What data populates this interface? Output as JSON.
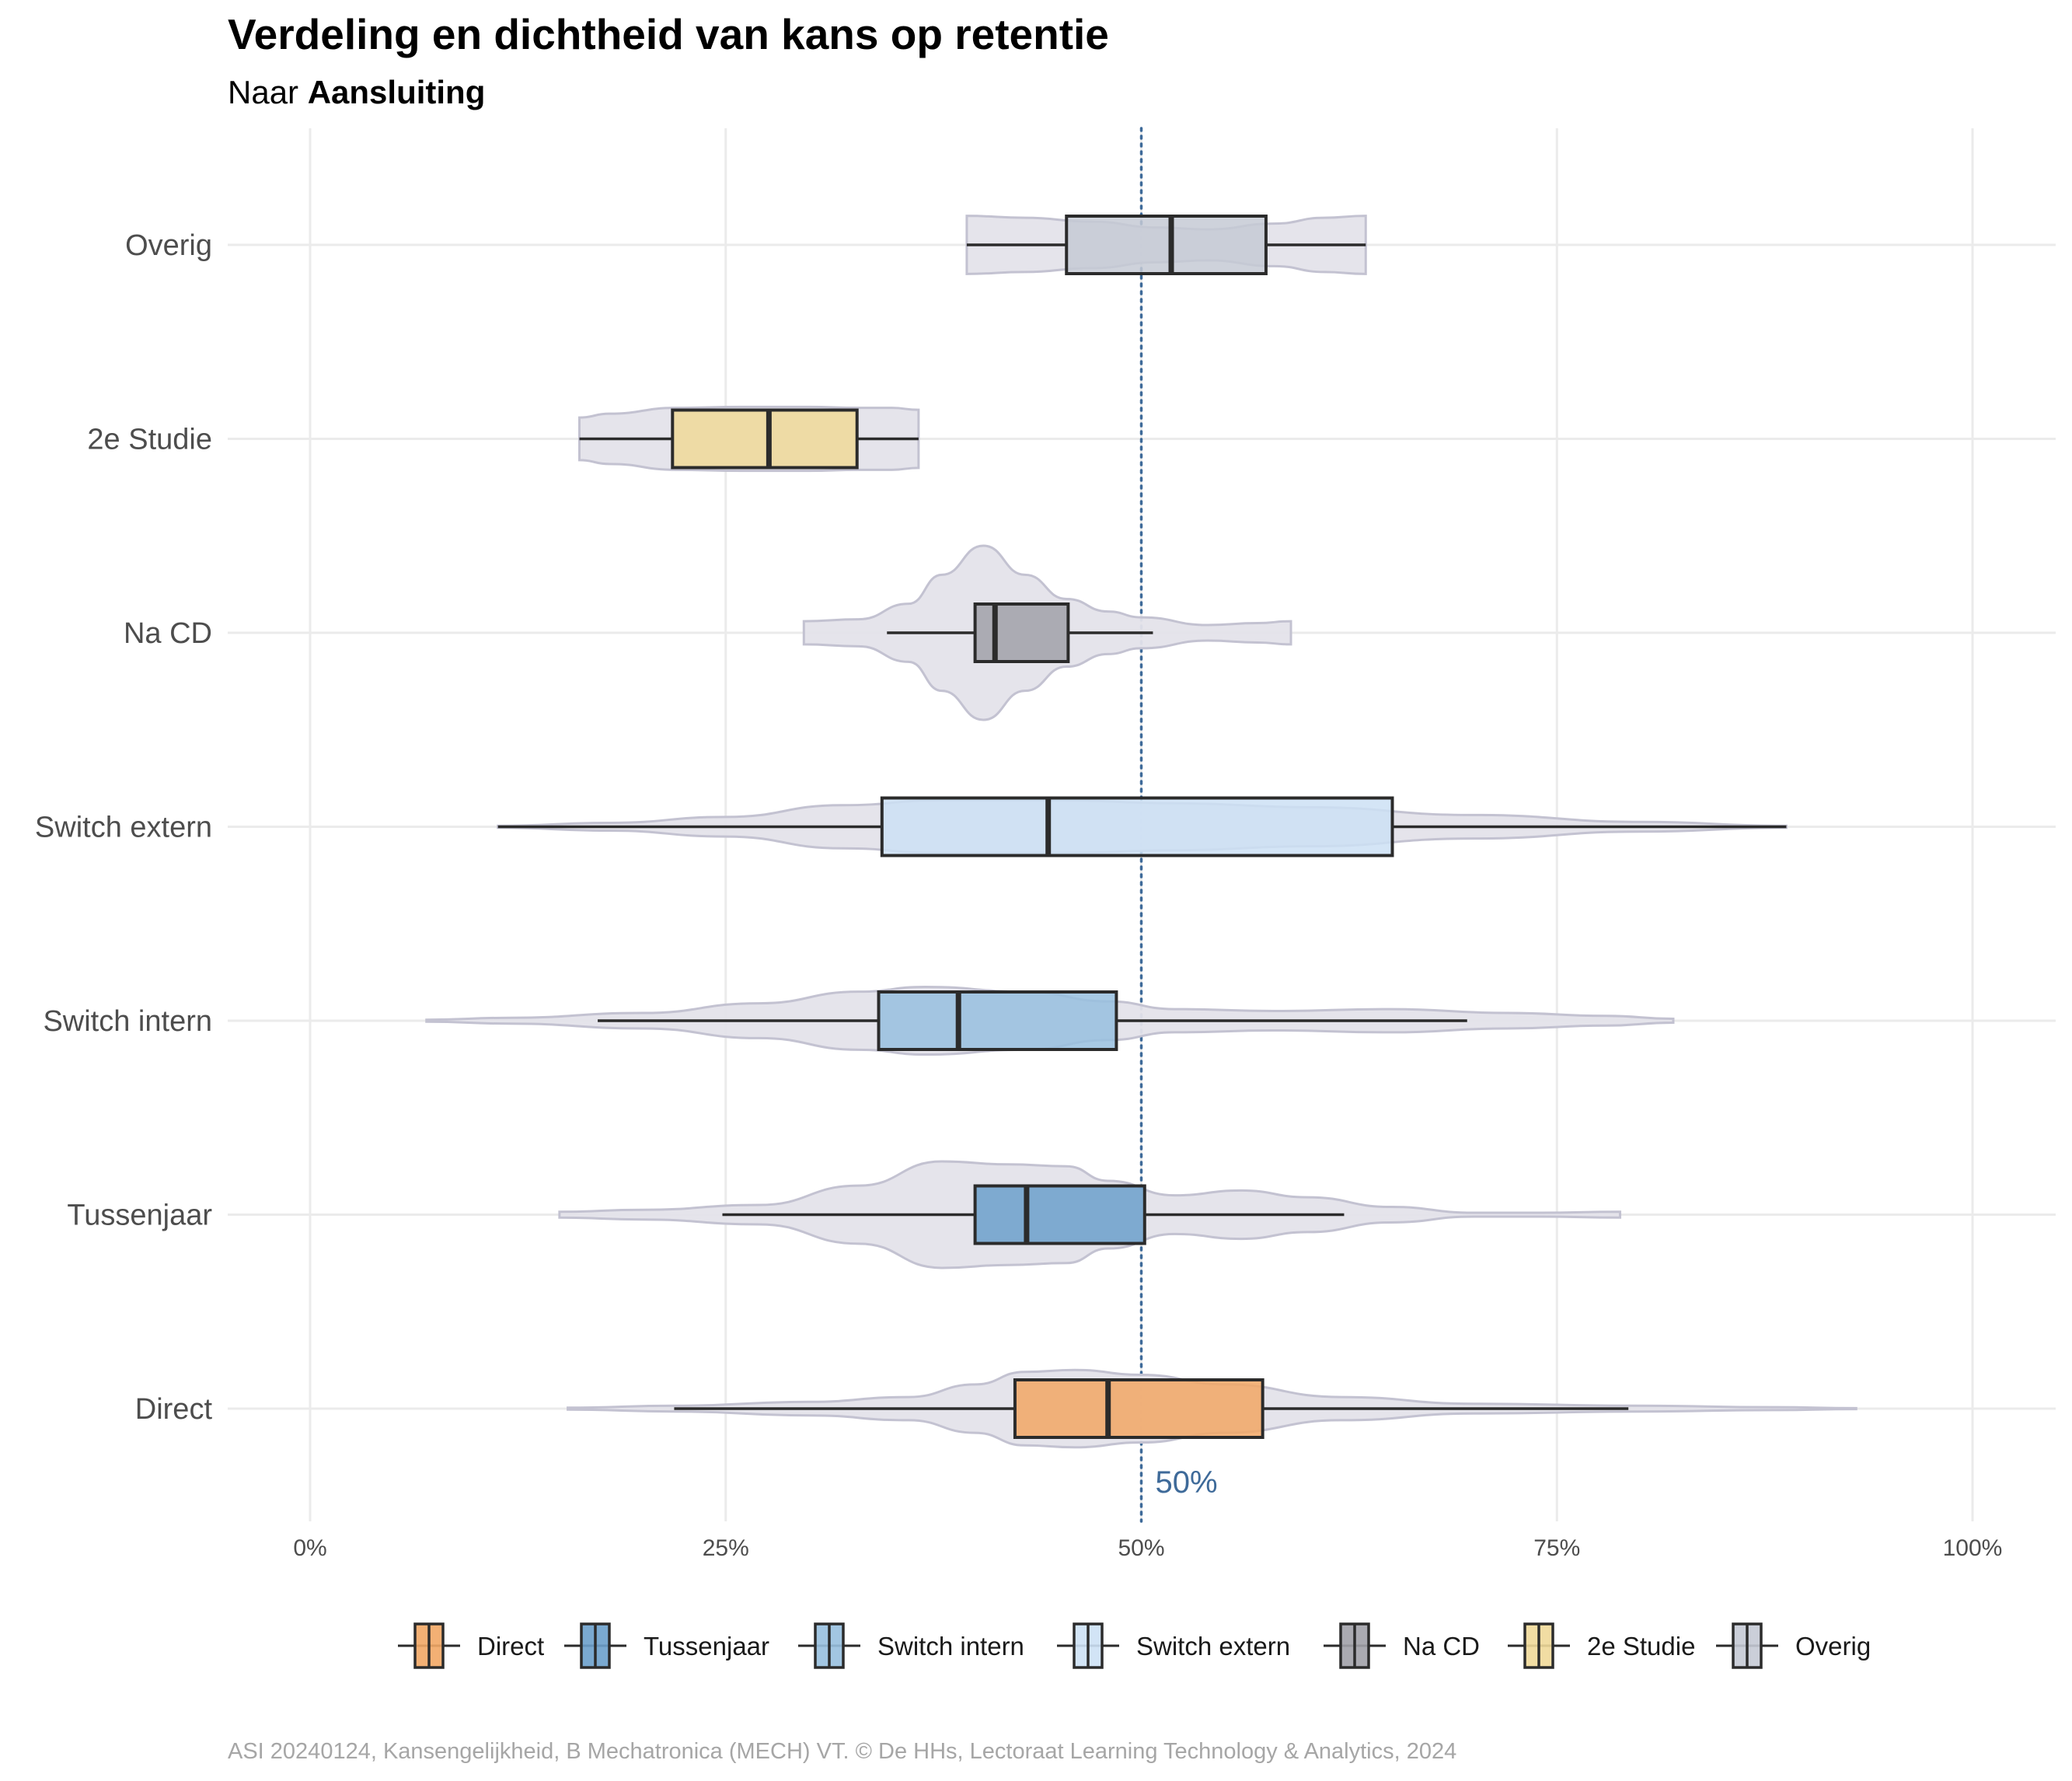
{
  "header": {
    "title": "Verdeling en dichtheid van kans op retentie",
    "subtitle_prefix": "Naar ",
    "subtitle_bold": "Aansluiting"
  },
  "caption": "ASI 20240124, Kansengelijkheid, B Mechatronica (MECH) VT. © De HHs, Lectoraat Learning Technology & Analytics, 2024",
  "reference_line": {
    "value": 50,
    "label": "50%",
    "color": "#3e6a99"
  },
  "colors": {
    "violin_fill": "#e4e3ea",
    "violin_stroke": "#c3c2d1",
    "box_stroke": "#2b2b2b",
    "grid": "#ebebeb"
  },
  "chart_data": {
    "type": "violin-boxplot",
    "orientation": "horizontal",
    "title": "Verdeling en dichtheid van kans op retentie",
    "subtitle": "Naar Aansluiting",
    "xlim": [
      0,
      100
    ],
    "xticks": [
      0,
      25,
      50,
      75,
      100
    ],
    "xtick_labels": [
      "0%",
      "25%",
      "50%",
      "75%",
      "100%"
    ],
    "grid": true,
    "legend_position": "bottom",
    "categories": [
      "Overig",
      "2e Studie",
      "Na CD",
      "Switch extern",
      "Switch intern",
      "Tussenjaar",
      "Direct"
    ],
    "groups": [
      {
        "name": "Overig",
        "color": "#c5cad5",
        "violin": {
          "min": 39.5,
          "max": 63.5,
          "profile": [
            [
              39.5,
              0.3
            ],
            [
              43,
              0.28
            ],
            [
              47,
              0.24
            ],
            [
              51,
              0.18
            ],
            [
              54,
              0.16
            ],
            [
              58,
              0.22
            ],
            [
              61,
              0.28
            ],
            [
              63.5,
              0.3
            ]
          ]
        },
        "box": {
          "whisker_low": 39.5,
          "q1": 45.5,
          "median": 51.8,
          "q3": 57.5,
          "whisker_high": 63.5
        }
      },
      {
        "name": "2e Studie",
        "color": "#f0d999",
        "violin": {
          "min": 16.2,
          "max": 36.6,
          "profile": [
            [
              16.2,
              0.22
            ],
            [
              18,
              0.26
            ],
            [
              22,
              0.32
            ],
            [
              26,
              0.33
            ],
            [
              30,
              0.33
            ],
            [
              33,
              0.32
            ],
            [
              35,
              0.32
            ],
            [
              36.6,
              0.3
            ]
          ]
        },
        "box": {
          "whisker_low": 16.2,
          "q1": 21.8,
          "median": 27.6,
          "q3": 32.9,
          "whisker_high": 36.6
        }
      },
      {
        "name": "Na CD",
        "color": "#a1a1a9",
        "violin": {
          "min": 29.7,
          "max": 59,
          "profile": [
            [
              29.7,
              0.12
            ],
            [
              33,
              0.14
            ],
            [
              36,
              0.3
            ],
            [
              38,
              0.6
            ],
            [
              40.5,
              0.9
            ],
            [
              43,
              0.6
            ],
            [
              45.5,
              0.35
            ],
            [
              48,
              0.22
            ],
            [
              50,
              0.16
            ],
            [
              54,
              0.08
            ],
            [
              57,
              0.1
            ],
            [
              59,
              0.12
            ]
          ]
        },
        "box": {
          "whisker_low": 34.7,
          "q1": 40.0,
          "median": 41.2,
          "q3": 45.6,
          "whisker_high": 50.7
        }
      },
      {
        "name": "Switch extern",
        "color": "#cde1f5",
        "violin": {
          "min": 11.3,
          "max": 88.8,
          "profile": [
            [
              11.3,
              0.01
            ],
            [
              18,
              0.04
            ],
            [
              25,
              0.1
            ],
            [
              32,
              0.22
            ],
            [
              38,
              0.27
            ],
            [
              45,
              0.27
            ],
            [
              52,
              0.24
            ],
            [
              60,
              0.2
            ],
            [
              70,
              0.12
            ],
            [
              80,
              0.05
            ],
            [
              88.8,
              0.01
            ]
          ]
        },
        "box": {
          "whisker_low": 11.3,
          "q1": 34.4,
          "median": 44.4,
          "q3": 65.1,
          "whisker_high": 88.8
        }
      },
      {
        "name": "Switch intern",
        "color": "#98c0df",
        "violin": {
          "min": 7,
          "max": 82,
          "profile": [
            [
              7,
              0.01
            ],
            [
              12,
              0.03
            ],
            [
              20,
              0.08
            ],
            [
              27,
              0.18
            ],
            [
              33,
              0.3
            ],
            [
              37,
              0.35
            ],
            [
              43,
              0.3
            ],
            [
              48,
              0.2
            ],
            [
              52,
              0.12
            ],
            [
              58,
              0.1
            ],
            [
              65,
              0.12
            ],
            [
              72,
              0.08
            ],
            [
              78,
              0.05
            ],
            [
              82,
              0.02
            ]
          ]
        },
        "box": {
          "whisker_low": 17.3,
          "q1": 34.2,
          "median": 39.0,
          "q3": 48.5,
          "whisker_high": 69.6
        }
      },
      {
        "name": "Tussenjaar",
        "color": "#6ca0cb",
        "violin": {
          "min": 15,
          "max": 78.8,
          "profile": [
            [
              15,
              0.03
            ],
            [
              20,
              0.05
            ],
            [
              27,
              0.1
            ],
            [
              33,
              0.3
            ],
            [
              38,
              0.55
            ],
            [
              42,
              0.52
            ],
            [
              45.5,
              0.5
            ],
            [
              48,
              0.35
            ],
            [
              52,
              0.2
            ],
            [
              56,
              0.25
            ],
            [
              60,
              0.18
            ],
            [
              65,
              0.08
            ],
            [
              70,
              0.02
            ],
            [
              74,
              0.02
            ],
            [
              78.8,
              0.03
            ]
          ]
        },
        "box": {
          "whisker_low": 24.8,
          "q1": 40.0,
          "median": 43.1,
          "q3": 50.2,
          "whisker_high": 62.2
        }
      },
      {
        "name": "Direct",
        "color": "#f2a765",
        "violin": {
          "min": 15.5,
          "max": 93,
          "profile": [
            [
              15.5,
              0.01
            ],
            [
              22,
              0.03
            ],
            [
              30,
              0.07
            ],
            [
              36,
              0.12
            ],
            [
              40,
              0.25
            ],
            [
              43,
              0.38
            ],
            [
              46,
              0.4
            ],
            [
              50,
              0.35
            ],
            [
              55,
              0.25
            ],
            [
              62,
              0.12
            ],
            [
              70,
              0.05
            ],
            [
              80,
              0.03
            ],
            [
              88,
              0.015
            ],
            [
              93,
              0.005
            ]
          ]
        },
        "box": {
          "whisker_low": 21.9,
          "q1": 42.4,
          "median": 48.0,
          "q3": 57.3,
          "whisker_high": 79.3
        }
      }
    ],
    "legend": [
      "Direct",
      "Tussenjaar",
      "Switch intern",
      "Switch extern",
      "Na CD",
      "2e Studie",
      "Overig"
    ]
  }
}
